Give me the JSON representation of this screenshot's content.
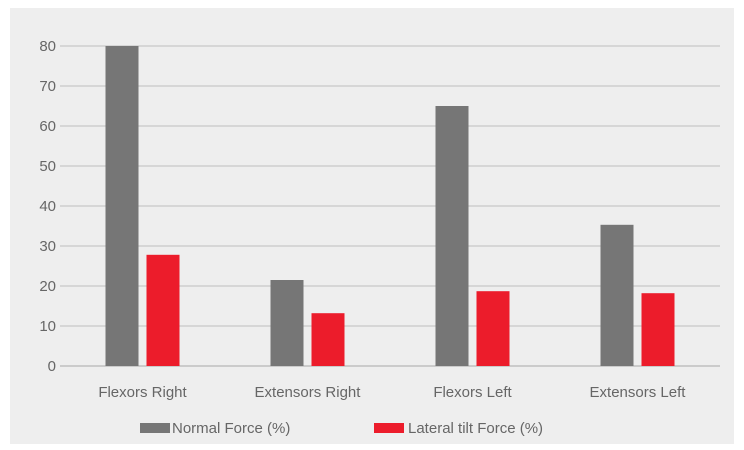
{
  "chart_data": {
    "type": "bar",
    "categories": [
      "Flexors Right",
      "Extensors Right",
      "Flexors Left",
      "Extensors Left"
    ],
    "series": [
      {
        "name": "Normal Force (%)",
        "values": [
          80,
          21.5,
          65,
          35.3
        ],
        "color": "#767676"
      },
      {
        "name": "Lateral tilt Force (%)",
        "values": [
          27.8,
          13.2,
          18.7,
          18.2
        ],
        "color": "#ec1c2b"
      }
    ],
    "title": "",
    "xlabel": "",
    "ylabel": "",
    "ylim": [
      0,
      80
    ],
    "yticks": [
      0,
      10,
      20,
      30,
      40,
      50,
      60,
      70,
      80
    ],
    "grid": true,
    "legend": "bottom"
  }
}
